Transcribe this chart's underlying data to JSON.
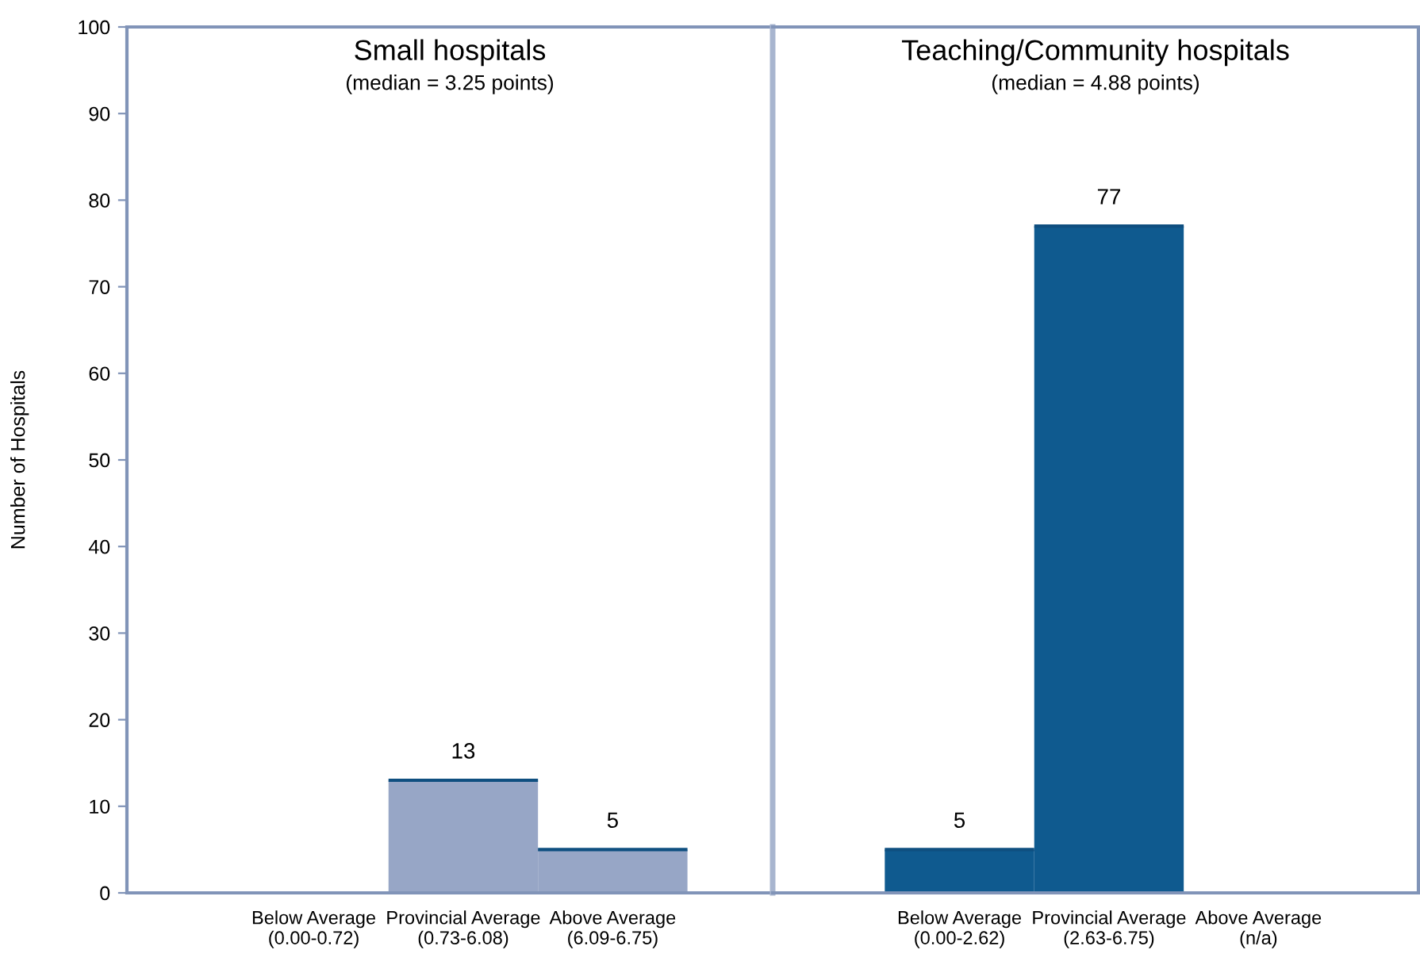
{
  "chart_data": [
    {
      "type": "bar",
      "title": "Small hospitals",
      "subtitle": "(median = 3.25 points)",
      "ylabel": "Number of Hospitals",
      "categories": [
        "Below Average\n(0.00-0.72)",
        "Provincial Average\n(0.73-6.08)",
        "Above Average\n(6.09-6.75)"
      ],
      "values": [
        0,
        13,
        5
      ],
      "value_labels": [
        null,
        "13",
        "5"
      ],
      "color": "#97a6c6",
      "ylim": [
        0,
        100
      ],
      "yticks": [
        0,
        10,
        20,
        30,
        40,
        50,
        60,
        70,
        80,
        90,
        100
      ],
      "grid": false
    },
    {
      "type": "bar",
      "title": "Teaching/Community hospitals",
      "subtitle": "(median = 4.88 points)",
      "categories": [
        "Below Average\n(0.00-2.62)",
        "Provincial Average\n(2.63-6.75)",
        "Above Average\n(n/a)"
      ],
      "values": [
        5,
        77,
        0
      ],
      "value_labels": [
        "5",
        "77",
        null
      ],
      "color": "#0f5a8f",
      "ylim": [
        0,
        100
      ],
      "tick_labels": "x",
      "grid": false
    }
  ]
}
